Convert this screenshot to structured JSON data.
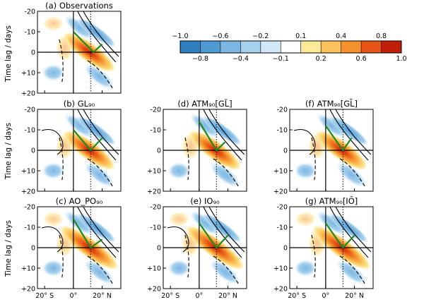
{
  "chart_data": {
    "type": "contour_panels",
    "ylabel": "Time lag  / days",
    "yticks": [
      "-20",
      "-10",
      "0",
      "+10",
      "+20"
    ],
    "ylim": [
      -20,
      20
    ],
    "xticks": [
      "20° S",
      "0°",
      "20° N"
    ],
    "xtick_values": [
      -20,
      0,
      20
    ],
    "xlim": [
      -25,
      33
    ],
    "colorbar": {
      "levels": [
        -1.0,
        -0.8,
        -0.6,
        -0.4,
        -0.2,
        -0.1,
        0.1,
        0.2,
        0.4,
        0.6,
        0.8,
        1.0
      ],
      "upper_labels": [
        "−1.0",
        "−0.6",
        "−0.2",
        "0.1",
        "0.4",
        "0.8"
      ],
      "lower_labels": [
        "−0.8",
        "−0.4",
        "−0.1",
        "0.2",
        "0.6",
        "1.0"
      ],
      "colors": [
        "#2f7fc1",
        "#4f9ad3",
        "#7bb7e2",
        "#a6d0ee",
        "#d2e8f7",
        "#ffffff",
        "#fde99b",
        "#fbc25b",
        "#f5912d",
        "#e65515",
        "#c21f0b"
      ]
    },
    "panels": [
      {
        "id": "a",
        "title": "(a) Observations",
        "ref_lat": 12,
        "propagation": [
          [
            0,
            -10
          ],
          [
            14,
            0
          ],
          [
            20,
            -4
          ]
        ]
      },
      {
        "id": "b",
        "title": "(b) GL₉₀",
        "ref_lat": 12,
        "propagation": [
          [
            0,
            -10
          ],
          [
            12,
            0
          ],
          [
            20,
            -6
          ]
        ]
      },
      {
        "id": "d",
        "title": "(d) ATM₉₀[GL̃]",
        "ref_lat": 12,
        "propagation": [
          [
            0,
            -14
          ],
          [
            12,
            0
          ],
          [
            18,
            -4
          ]
        ]
      },
      {
        "id": "f",
        "title": "(f) ATM₉₀[GL̄]",
        "ref_lat": 12,
        "propagation": [
          [
            0,
            -12
          ],
          [
            12,
            0
          ],
          [
            18,
            -6
          ]
        ]
      },
      {
        "id": "c",
        "title": "(c) AO_PO₉₀",
        "ref_lat": 12,
        "propagation": [
          [
            0,
            -14
          ],
          [
            12,
            0
          ],
          [
            20,
            -4
          ]
        ]
      },
      {
        "id": "e",
        "title": "(e) IO₉₀",
        "ref_lat": 12,
        "propagation": [
          [
            0,
            -12
          ],
          [
            12,
            0
          ],
          [
            20,
            -6
          ]
        ]
      },
      {
        "id": "g",
        "title": "(g) ATM₉₀[IÕ]",
        "ref_lat": 12,
        "propagation": [
          [
            0,
            -12
          ],
          [
            12,
            0
          ],
          [
            20,
            -6
          ]
        ]
      }
    ]
  }
}
